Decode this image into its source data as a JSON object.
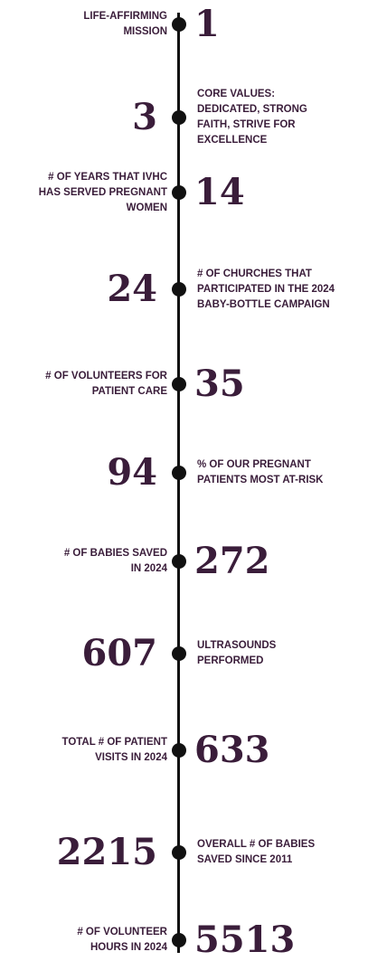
{
  "items": [
    {
      "number": 1,
      "label": [
        "LIFE-AFFIRMING",
        "MISSION"
      ]
    },
    {
      "number": 3,
      "label": [
        "CORE VALUES:",
        "DEDICATED, STRONG",
        "FAITH, STRIVE FOR",
        "EXCELLENCE"
      ]
    },
    {
      "number": 14,
      "label": [
        "# OF YEARS THAT IVHC",
        "HAS SERVED PREGNANT",
        "WOMEN"
      ]
    },
    {
      "number": 24,
      "label": [
        "# OF CHURCHES THAT",
        "PARTICIPATED IN THE 2024",
        "BABY-BOTTLE CAMPAIGN"
      ]
    },
    {
      "number": 35,
      "label": [
        "# OF VOLUNTEERS FOR",
        "PATIENT CARE"
      ]
    },
    {
      "number": 94,
      "label": [
        "% OF OUR PREGNANT",
        "PATIENTS MOST AT-RISK"
      ]
    },
    {
      "number": 272,
      "label": [
        "# OF BABIES SAVED",
        "IN 2024"
      ]
    },
    {
      "number": 607,
      "label": [
        "ULTRASOUNDS",
        "PERFORMED"
      ]
    },
    {
      "number": 633,
      "label": [
        "TOTAL # OF PATIENT",
        "VISITS IN 2024"
      ]
    },
    {
      "number": 2215,
      "label": [
        "OVERALL # OF BABIES",
        "SAVED SINCE 2011"
      ]
    },
    {
      "number": 5513,
      "label": [
        "# OF VOLUNTEER",
        "HOURS IN 2024"
      ]
    }
  ]
}
